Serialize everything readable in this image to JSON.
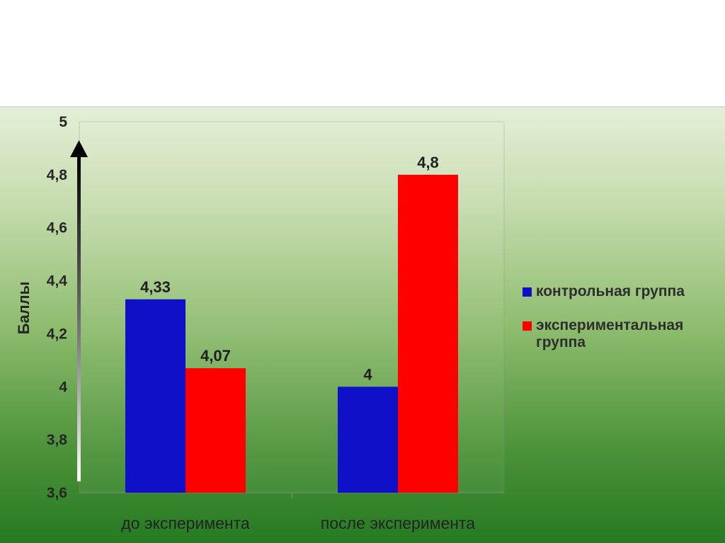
{
  "chart_data": {
    "type": "bar",
    "categories": [
      "до эксперимента",
      "после эксперимента"
    ],
    "series": [
      {
        "name": "контрольная группа",
        "values": [
          4.33,
          4
        ],
        "labels": [
          "4,33",
          "4"
        ],
        "color": "#1010c8"
      },
      {
        "name": "экспериментальная группа",
        "values": [
          4.07,
          4.8
        ],
        "labels": [
          "4,07",
          "4,8"
        ],
        "color": "#ff0000"
      }
    ],
    "ylabel": "Баллы",
    "ylim": [
      3.6,
      5
    ],
    "yticks": [
      3.6,
      3.8,
      4,
      4.2,
      4.4,
      4.6,
      4.8,
      5
    ],
    "ytick_labels": [
      "3,6",
      "3,8",
      "4",
      "4,2",
      "4,4",
      "4,6",
      "4,8",
      "5"
    ],
    "legend_position": "right",
    "grid": false
  }
}
